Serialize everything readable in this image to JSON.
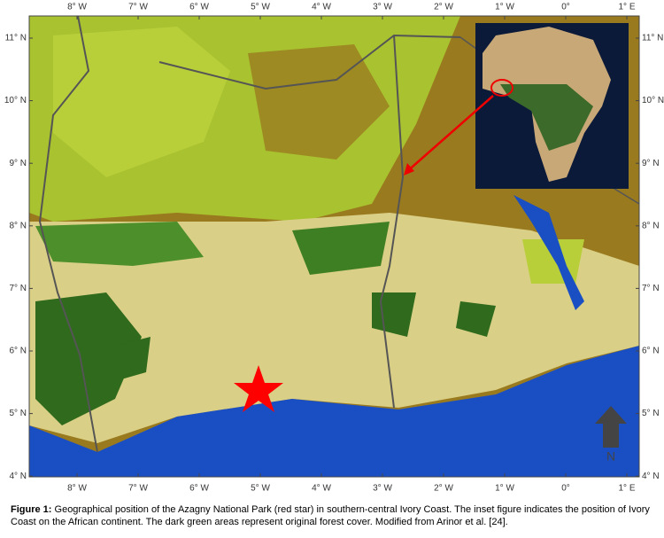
{
  "map": {
    "longitude_labels": [
      "8° W",
      "7° W",
      "6° W",
      "5° W",
      "4° W",
      "3° W",
      "2° W",
      "1° W",
      "0°",
      "1° E"
    ],
    "latitude_labels": [
      "11° N",
      "10° N",
      "9° N",
      "8° N",
      "7° N",
      "6° N",
      "5° N",
      "4° N"
    ],
    "north_label": "N"
  },
  "caption": {
    "label": "Figure 1:",
    "text": "Geographical position of the Azagny National Park (red star) in southern-central Ivory Coast. The inset figure indicates the position of Ivory Coast on the African continent. The dark green areas represent original forest cover. Modified from Arinor et al. [24]."
  }
}
